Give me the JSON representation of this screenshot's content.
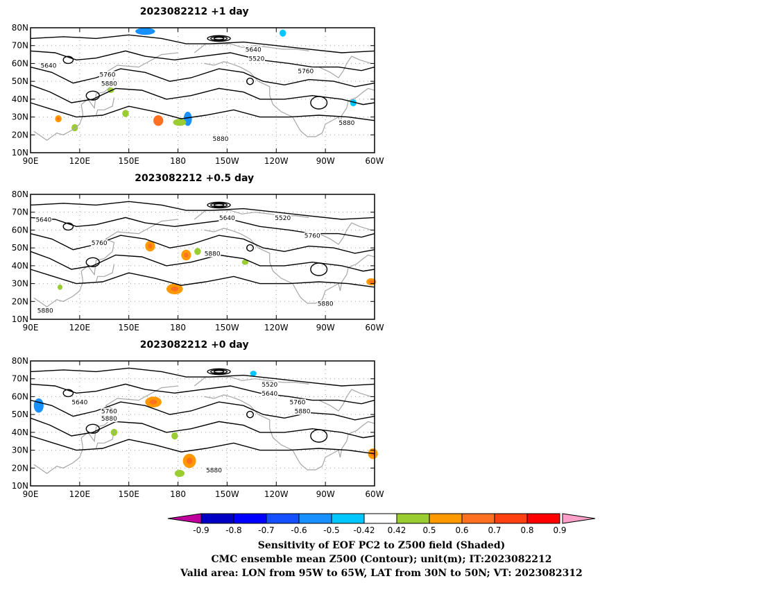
{
  "colors": {
    "contour": "#000000",
    "coast": "#a6a6a6",
    "grid": "#9a9a9a",
    "colorbar": [
      "#c0009c",
      "#0000c4",
      "#0000ff",
      "#1450ff",
      "#1890ff",
      "#00c8ff",
      "#ffffff",
      "#9acd32",
      "#ff9900",
      "#ff7020",
      "#ff4010",
      "#ff0000",
      "#ffa0c8"
    ]
  },
  "panels": [
    {
      "title": "2023082212  +1 day",
      "contour_labels": [
        {
          "text": "5520",
          "lon": 228,
          "lat": 62
        },
        {
          "text": "5640",
          "lon": 226,
          "lat": 67
        },
        {
          "text": "5640",
          "lon": 101,
          "lat": 58
        },
        {
          "text": "5760",
          "lon": 137,
          "lat": 53
        },
        {
          "text": "5880",
          "lon": 138,
          "lat": 48
        },
        {
          "text": "5760",
          "lon": 258,
          "lat": 55
        },
        {
          "text": "5880",
          "lon": 283,
          "lat": 26
        },
        {
          "text": "5880",
          "lon": 206,
          "lat": 17
        }
      ],
      "shades": [
        {
          "lon": 160,
          "lat": 78,
          "rx": 6,
          "ry": 2,
          "level": "-0.6"
        },
        {
          "lon": 186,
          "lat": 29,
          "rx": 2.5,
          "ry": 4,
          "level": "-0.6"
        },
        {
          "lon": 244,
          "lat": 77,
          "rx": 2,
          "ry": 2,
          "level": "-0.5"
        },
        {
          "lon": 287,
          "lat": 38,
          "rx": 2,
          "ry": 2,
          "level": "-0.5"
        },
        {
          "lon": 168,
          "lat": 28,
          "rx": 3,
          "ry": 3,
          "level": "0.7"
        },
        {
          "lon": 107,
          "lat": 29,
          "rx": 2,
          "ry": 2,
          "level": "0.6"
        },
        {
          "lon": 181,
          "lat": 27,
          "rx": 4,
          "ry": 2,
          "level": "0.5"
        },
        {
          "lon": 139,
          "lat": 45,
          "rx": 2,
          "ry": 1.5,
          "level": "0.5"
        },
        {
          "lon": 148,
          "lat": 32,
          "rx": 2,
          "ry": 2,
          "level": "0.5"
        },
        {
          "lon": 117,
          "lat": 24,
          "rx": 2,
          "ry": 2,
          "level": "0.5"
        }
      ]
    },
    {
      "title": "2023082212  +0.5 day",
      "contour_labels": [
        {
          "text": "5640",
          "lon": 98,
          "lat": 65
        },
        {
          "text": "5640",
          "lon": 210,
          "lat": 66
        },
        {
          "text": "5520",
          "lon": 244,
          "lat": 66
        },
        {
          "text": "5760",
          "lon": 132,
          "lat": 52
        },
        {
          "text": "5760",
          "lon": 262,
          "lat": 56
        },
        {
          "text": "5880",
          "lon": 201,
          "lat": 46
        },
        {
          "text": "5880",
          "lon": 270,
          "lat": 18
        },
        {
          "text": "5880",
          "lon": 99,
          "lat": 14
        }
      ],
      "shades": [
        {
          "lon": 163,
          "lat": 51,
          "rx": 3,
          "ry": 3,
          "level": "0.6"
        },
        {
          "lon": 185,
          "lat": 46,
          "rx": 3,
          "ry": 3,
          "level": "0.6"
        },
        {
          "lon": 178,
          "lat": 27,
          "rx": 5,
          "ry": 3,
          "level": "0.6"
        },
        {
          "lon": 298,
          "lat": 31,
          "rx": 3,
          "ry": 2,
          "level": "0.6"
        },
        {
          "lon": 192,
          "lat": 48,
          "rx": 2,
          "ry": 2,
          "level": "0.5"
        },
        {
          "lon": 221,
          "lat": 42,
          "rx": 2,
          "ry": 1.5,
          "level": "0.5"
        },
        {
          "lon": 108,
          "lat": 28,
          "rx": 1.5,
          "ry": 1.5,
          "level": "0.5"
        }
      ]
    },
    {
      "title": "2023082212  +0 day",
      "contour_labels": [
        {
          "text": "5520",
          "lon": 236,
          "lat": 66
        },
        {
          "text": "5640",
          "lon": 236,
          "lat": 61
        },
        {
          "text": "5640",
          "lon": 120,
          "lat": 56
        },
        {
          "text": "5760",
          "lon": 138,
          "lat": 51
        },
        {
          "text": "5880",
          "lon": 138,
          "lat": 47
        },
        {
          "text": "5760",
          "lon": 253,
          "lat": 56
        },
        {
          "text": "5880",
          "lon": 256,
          "lat": 51
        },
        {
          "text": "5880",
          "lon": 202,
          "lat": 18
        }
      ],
      "shades": [
        {
          "lon": 95,
          "lat": 55,
          "rx": 3,
          "ry": 4,
          "level": "-0.6"
        },
        {
          "lon": 226,
          "lat": 73,
          "rx": 2,
          "ry": 1.5,
          "level": "-0.5"
        },
        {
          "lon": 165,
          "lat": 57,
          "rx": 5,
          "ry": 3,
          "level": "0.6"
        },
        {
          "lon": 187,
          "lat": 24,
          "rx": 4,
          "ry": 4,
          "level": "0.6"
        },
        {
          "lon": 299,
          "lat": 28,
          "rx": 3,
          "ry": 3,
          "level": "0.6"
        },
        {
          "lon": 178,
          "lat": 38,
          "rx": 2,
          "ry": 2,
          "level": "0.5"
        },
        {
          "lon": 141,
          "lat": 40,
          "rx": 2,
          "ry": 2,
          "level": "0.5"
        },
        {
          "lon": 181,
          "lat": 17,
          "rx": 3,
          "ry": 2,
          "level": "0.5"
        }
      ]
    }
  ],
  "axes": {
    "lat_labels": [
      "80N",
      "70N",
      "60N",
      "50N",
      "40N",
      "30N",
      "20N",
      "10N"
    ],
    "lon_labels": [
      "90E",
      "120E",
      "150E",
      "180",
      "150W",
      "120W",
      "90W",
      "60W"
    ],
    "lon_range": [
      90,
      300
    ],
    "lat_range": [
      10,
      80
    ]
  },
  "colorbar": {
    "labels": [
      "-0.9",
      "-0.8",
      "-0.7",
      "-0.6",
      "-0.5",
      "-0.42",
      "0.42",
      "0.5",
      "0.6",
      "0.7",
      "0.8",
      "0.9"
    ]
  },
  "caption": {
    "line1": "Sensitivity of EOF PC2 to Z500 field (Shaded)",
    "line2": "CMC ensemble mean Z500 (Contour); unit(m); IT:2023082212",
    "line3": "Valid area: LON from 95W to 65W, LAT from 30N to 50N; VT: 2023082312"
  }
}
